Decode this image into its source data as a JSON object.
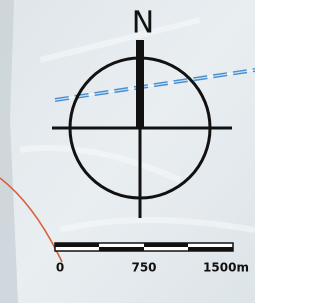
{
  "compass": {
    "north_label": "N"
  },
  "scale_bar": {
    "labels": [
      "0",
      "750",
      "1500m"
    ]
  }
}
